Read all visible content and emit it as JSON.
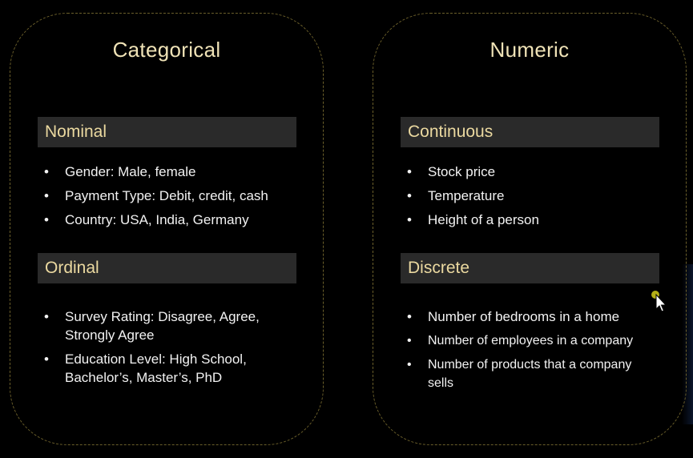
{
  "categorical": {
    "title": "Categorical",
    "nominal": {
      "header": "Nominal",
      "items": [
        "Gender: Male, female",
        "Payment Type: Debit, credit, cash",
        "Country: USA, India, Germany"
      ]
    },
    "ordinal": {
      "header": "Ordinal",
      "items": [
        "Survey Rating: Disagree, Agree, Strongly Agree",
        "Education Level: High School, Bachelor’s, Master’s, PhD"
      ]
    }
  },
  "numeric": {
    "title": "Numeric",
    "continuous": {
      "header": "Continuous",
      "items": [
        "Stock price",
        "Temperature",
        "Height of a person"
      ]
    },
    "discrete": {
      "header": "Discrete",
      "items": [
        "Number of bedrooms in a home",
        "Number of employees in a company",
        "Number of products that a company sells"
      ]
    }
  },
  "bullet_char": "•",
  "colors": {
    "background": "#000000",
    "title_text": "#efe2b6",
    "header_text": "#ebd9a0",
    "header_bg": "#2a2a2a",
    "item_text": "#f2f2f2",
    "panel_border": "#6b5f2a",
    "cursor_dot": "#c8c21a"
  },
  "icons": {
    "cursor": "mouse-pointer-icon"
  }
}
